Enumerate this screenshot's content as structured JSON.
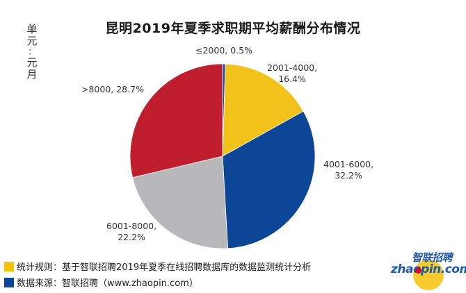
{
  "chart_data": {
    "type": "pie",
    "title": "昆明2019年夏季求职期平均薪酬分布情况",
    "unit_label": "单元：元/月",
    "categories": [
      "≤2000",
      "2001-4000",
      "4001-6000",
      "6001-8000",
      ">8000"
    ],
    "values": [
      0.5,
      16.4,
      32.2,
      22.2,
      28.7
    ],
    "value_unit": "%",
    "colors": [
      "#1f4e9c",
      "#f2c21a",
      "#0d4597",
      "#b8b8bb",
      "#be1e2d"
    ],
    "data_labels": [
      "≤2000, 0.5%",
      "2001-4000, 16.4%",
      "4001-6000, 32.2%",
      "6001-8000, 22.2%",
      ">8000, 28.7%"
    ],
    "start_angle": "12 o'clock, clockwise",
    "legend_position": "none (data labels)"
  },
  "header": {
    "title": "昆明2019年夏季求职期平均薪酬分布情况",
    "unit_chars": [
      "单",
      "元",
      "：",
      "元",
      "/",
      "月"
    ]
  },
  "labels": {
    "le2000": {
      "line1": "≤2000, 0.5%"
    },
    "s2001": {
      "line1": "2001-4000,",
      "line2": "16.4%"
    },
    "s4001": {
      "line1": "4001-6000,",
      "line2": "32.2%"
    },
    "s6001": {
      "line1": "6001-8000,",
      "line2": "22.2%"
    },
    "gt8000": {
      "line1": ">8000, 28.7%"
    }
  },
  "footer": {
    "rule_label": "统计规则：基于智联招聘2019年夏季在线招聘数据库的数据监测统计分析",
    "rule_color": "#f5c400",
    "source_label": "数据来源：智联招聘（www.zhaopin.com）",
    "source_color": "#0d4597"
  },
  "logo": {
    "cn": "智联招聘",
    "en": "zhaopin.com"
  }
}
